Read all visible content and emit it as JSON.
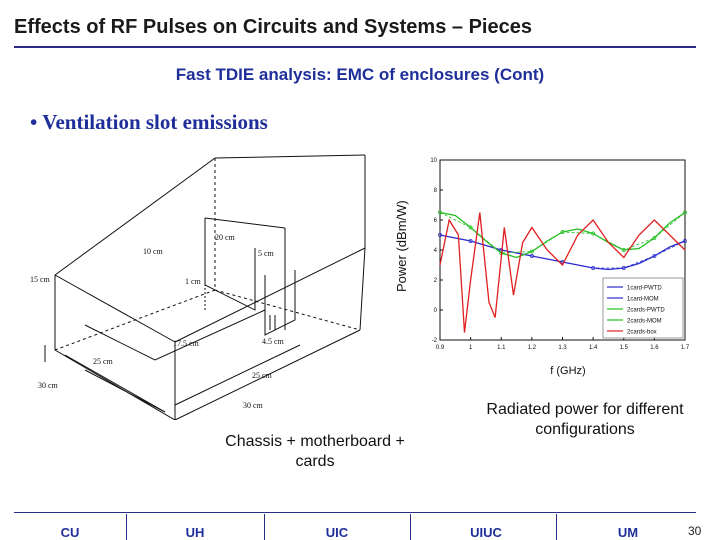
{
  "header": {
    "title": "Effects of RF Pulses on Circuits and Systems – Pieces",
    "subtitle": "Fast TDIE analysis: EMC of enclosures (Cont)"
  },
  "bullet": {
    "text": "•  Ventilation slot emissions"
  },
  "diagram": {
    "labels": {
      "d20": "20 cm",
      "d10": "10 cm",
      "d5": "5 cm",
      "d15": "15 cm",
      "d1": "1 cm",
      "d175": "17.5 cm",
      "d45": "4.5 cm",
      "d25a": "25 cm",
      "d25b": "25 cm",
      "d30a": "30 cm",
      "d30b": "30 cm"
    },
    "caption": "Chassis + motherboard + cards"
  },
  "chart_data": {
    "type": "line",
    "xlabel": "f (GHz)",
    "ylabel": "Power (dBm/W)",
    "xlim": [
      0.9,
      1.7
    ],
    "ylim": [
      -2,
      10
    ],
    "xticks": [
      "0.9",
      "1",
      "1.1",
      "1.2",
      "1.3",
      "1.4",
      "1.5",
      "1.6",
      "1.7"
    ],
    "yticks": [
      "-2",
      "0",
      "2",
      "4",
      "6",
      "8",
      "10"
    ],
    "legend_position": "bottom-right",
    "series": [
      {
        "name": "1card-PWTD",
        "color": "#2b2bd0",
        "x": [
          0.9,
          0.95,
          1.0,
          1.05,
          1.1,
          1.15,
          1.2,
          1.25,
          1.3,
          1.35,
          1.4,
          1.45,
          1.5,
          1.55,
          1.6,
          1.65,
          1.7
        ],
        "y": [
          5.0,
          4.8,
          4.6,
          4.3,
          4.0,
          3.8,
          3.6,
          3.4,
          3.2,
          3.0,
          2.8,
          2.7,
          2.8,
          3.1,
          3.6,
          4.2,
          4.6
        ]
      },
      {
        "name": "1card-MOM",
        "color": "#2b2bd0",
        "x": [
          0.9,
          1.0,
          1.1,
          1.2,
          1.3,
          1.4,
          1.5,
          1.6,
          1.7
        ],
        "y": [
          5.0,
          4.6,
          4.0,
          3.6,
          3.2,
          2.8,
          2.8,
          3.6,
          4.6
        ]
      },
      {
        "name": "2cards-PWTD",
        "color": "#22c022",
        "x": [
          0.9,
          0.95,
          1.0,
          1.05,
          1.1,
          1.15,
          1.2,
          1.25,
          1.3,
          1.35,
          1.4,
          1.45,
          1.5,
          1.55,
          1.6,
          1.65,
          1.7
        ],
        "y": [
          6.5,
          6.3,
          5.5,
          4.6,
          3.8,
          3.5,
          3.9,
          4.6,
          5.2,
          5.4,
          5.1,
          4.5,
          4.0,
          4.1,
          4.8,
          5.8,
          6.5
        ]
      },
      {
        "name": "2cards-MOM",
        "color": "#22c022",
        "x": [
          0.9,
          1.0,
          1.1,
          1.2,
          1.3,
          1.4,
          1.5,
          1.6,
          1.7
        ],
        "y": [
          6.5,
          5.5,
          3.8,
          3.9,
          5.2,
          5.1,
          4.0,
          4.8,
          6.5
        ]
      },
      {
        "name": "2cards-box",
        "color": "#e02020",
        "x": [
          0.9,
          0.93,
          0.96,
          0.98,
          1.0,
          1.03,
          1.06,
          1.08,
          1.11,
          1.14,
          1.17,
          1.2,
          1.25,
          1.3,
          1.35,
          1.4,
          1.45,
          1.5,
          1.55,
          1.6,
          1.65,
          1.7
        ],
        "y": [
          3.0,
          6.0,
          5.0,
          -1.5,
          2.0,
          6.5,
          0.5,
          -0.5,
          5.5,
          1.0,
          4.5,
          5.5,
          4.0,
          3.0,
          5.0,
          6.0,
          4.5,
          3.5,
          5.0,
          6.0,
          5.0,
          4.0
        ]
      }
    ]
  },
  "chart_caption": "Radiated power for different configurations",
  "footer": {
    "institutions": [
      "CU",
      "UH",
      "UIC",
      "UIUC",
      "UM"
    ],
    "page_number": "30"
  },
  "colors": {
    "title_rule": "#2b2b8a",
    "accent_text": "#1f2f9a"
  }
}
